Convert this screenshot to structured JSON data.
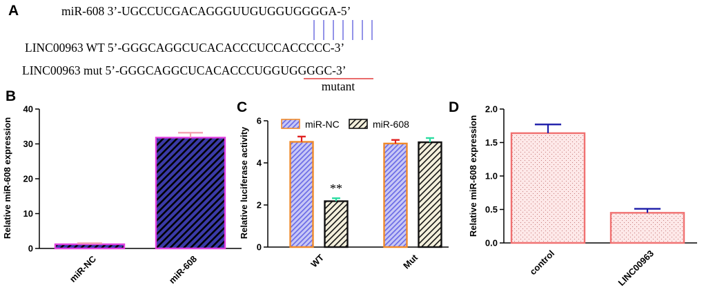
{
  "panel_a": {
    "letter": "A",
    "rows": [
      {
        "name": "miR-608",
        "sequence": "miR-608 3’-UGCCUCGACAGGGUUGUGGUGGGGA-5’"
      },
      {
        "name": "LINC00963 WT",
        "sequence": "LINC00963 WT 5’-GGGCAGGCUCACACCCUCCACCCCC-3’"
      },
      {
        "name": "LINC00963 mut",
        "sequence": "LINC00963 mut 5’-GGGCAGGCUCACACCCUGGUGGGGC-3’"
      }
    ],
    "pairing_line_color": "#3b3bd6",
    "mutant_label": "mutant",
    "mutant_underline_color": "#e23a3a"
  },
  "chart_data": [
    {
      "panel": "B",
      "type": "bar",
      "categories": [
        "miR-NC",
        "miR-608"
      ],
      "values": [
        1.2,
        31.8
      ],
      "errors": [
        0.3,
        1.4
      ],
      "ylabel": "Relative miR-608 expression",
      "ylim": [
        0,
        40
      ],
      "yticks": [
        0,
        10,
        20,
        30,
        40
      ],
      "style": {
        "fill": "#3a3aa8",
        "pattern": "dense diagonal stripes",
        "edge": "#e040e0",
        "error_color": "#f4a0b0"
      }
    },
    {
      "panel": "C",
      "type": "bar",
      "categories": [
        "WT",
        "Mut"
      ],
      "series": [
        {
          "name": "miR-NC",
          "values": [
            5.0,
            4.92
          ],
          "errors": [
            0.25,
            0.17
          ]
        },
        {
          "name": "miR-608",
          "values": [
            2.18,
            4.98
          ],
          "errors": [
            0.14,
            0.2
          ]
        }
      ],
      "annotations": [
        {
          "category": "WT",
          "series": "miR-608",
          "text": "**"
        }
      ],
      "ylabel": "Relative luciferase activity",
      "ylim": [
        0,
        6
      ],
      "yticks": [
        0,
        2,
        4,
        6
      ],
      "legend": "top",
      "style": {
        "miR-NC": {
          "fill": "#a9a9f0",
          "pattern": "blue diagonal stripes",
          "edge": "#f08a2a",
          "error_color": "#e02020"
        },
        "miR-608": {
          "fill": "#f4f0dc",
          "pattern": "black diagonal stripes",
          "edge": "#111111",
          "error_color": "#2adca0"
        }
      }
    },
    {
      "panel": "D",
      "type": "bar",
      "categories": [
        "control",
        "LINC00963"
      ],
      "values": [
        1.64,
        0.45
      ],
      "errors": [
        0.13,
        0.06
      ],
      "ylabel": "Relative miR-608 expression",
      "ylim": [
        0,
        2.0
      ],
      "yticks": [
        "0.0",
        "0.5",
        "1.0",
        "1.5",
        "2.0"
      ],
      "style": {
        "fill": "#fde8e8",
        "pattern": "fine dots",
        "edge": "#f07070",
        "error_color": "#1a1aa8"
      }
    }
  ]
}
